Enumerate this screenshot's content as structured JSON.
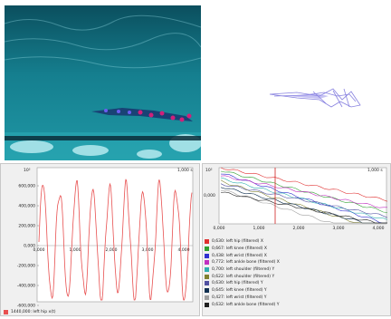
{
  "video_view": {
    "scene": "underwater-pool",
    "colors": {
      "water_top": "#0c5f6c",
      "water_mid": "#1b8a98",
      "floor": "#2aa0ad",
      "lane_stripe": "#0a2e3a",
      "markers": "#c0207a"
    }
  },
  "mesh_view": {
    "color": "#6b63d8"
  },
  "left_plot": {
    "y_exponent": "10²",
    "x_unit": "1,000 s",
    "y_ticks": [
      "600,000",
      "400,000",
      "200,000",
      "0,000",
      "-200,000",
      "-400,000",
      "-600,000"
    ],
    "x_ticks": [
      "0,000",
      "1,000",
      "2,000",
      "3,000",
      "4,000"
    ],
    "line_color": "#e85050",
    "legend_label": "1440,000: left hip x(t)"
  },
  "right_plot": {
    "y_exponent": "10²",
    "x_unit": "1,000 s",
    "y_ticks": [
      "0,000"
    ],
    "x_ticks": [
      "0,000",
      "1,000",
      "2,000",
      "3,000",
      "4,000"
    ],
    "cursor_color": "#d02020"
  },
  "legend": [
    {
      "label": "0,630: left hip (filtered) X",
      "color": "#e03030"
    },
    {
      "label": "0,667: left knee (filtered) X",
      "color": "#30a030"
    },
    {
      "label": "0,438: left wrist (filtered) X",
      "color": "#3030d0"
    },
    {
      "label": "0,772: left ankle bone (filtered) X",
      "color": "#c030c0"
    },
    {
      "label": "0,700: left shoulder (filtered) Y",
      "color": "#30b0b0"
    },
    {
      "label": "0,622: left shoulder (filtered) Y",
      "color": "#808030"
    },
    {
      "label": "0,630: left hip (filtered) Y",
      "color": "#5050a0"
    },
    {
      "label": "0,645: left knee (filtered) Y",
      "color": "#103050"
    },
    {
      "label": "0,427: left wrist (filtered) Y",
      "color": "#a0a0a0"
    },
    {
      "label": "0,632: left ankle bone (filtered) Y",
      "color": "#202020"
    }
  ]
}
